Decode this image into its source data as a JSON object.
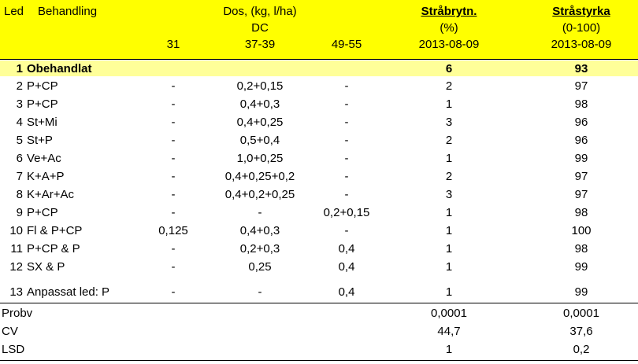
{
  "header": {
    "led": "Led",
    "behandling": "Behandling",
    "dos_title": "Dos, (kg, l/ha)",
    "dc": "DC",
    "dc31": "31",
    "dc3739": "37-39",
    "dc4955": "49-55",
    "strabrytn": "Stråbrytn.",
    "strabrytn_unit": "(%)",
    "strabrytn_date": "2013-08-09",
    "strastyrka": "Stråstyrka",
    "strastyrka_unit": "(0-100)",
    "strastyrka_date": "2013-08-09"
  },
  "rows": [
    {
      "led": "1",
      "beh": "Obehandlat",
      "d31": "",
      "d3739": "",
      "d4955": "",
      "brytn": "6",
      "styrka": "93"
    },
    {
      "led": "2",
      "beh": "P+CP",
      "d31": "-",
      "d3739": "0,2+0,15",
      "d4955": "-",
      "brytn": "2",
      "styrka": "97"
    },
    {
      "led": "3",
      "beh": "P+CP",
      "d31": "-",
      "d3739": "0,4+0,3",
      "d4955": "-",
      "brytn": "1",
      "styrka": "98"
    },
    {
      "led": "4",
      "beh": "St+Mi",
      "d31": "-",
      "d3739": "0,4+0,25",
      "d4955": "-",
      "brytn": "3",
      "styrka": "96"
    },
    {
      "led": "5",
      "beh": "St+P",
      "d31": "-",
      "d3739": "0,5+0,4",
      "d4955": "-",
      "brytn": "2",
      "styrka": "96"
    },
    {
      "led": "6",
      "beh": "Ve+Ac",
      "d31": "-",
      "d3739": "1,0+0,25",
      "d4955": "-",
      "brytn": "1",
      "styrka": "99"
    },
    {
      "led": "7",
      "beh": "K+A+P",
      "d31": "-",
      "d3739": "0,4+0,25+0,2",
      "d4955": "-",
      "brytn": "2",
      "styrka": "97"
    },
    {
      "led": "8",
      "beh": "K+Ar+Ac",
      "d31": "-",
      "d3739": "0,4+0,2+0,25",
      "d4955": "-",
      "brytn": "3",
      "styrka": "97"
    },
    {
      "led": "9",
      "beh": "P+CP",
      "d31": "-",
      "d3739": "-",
      "d4955": "0,2+0,15",
      "brytn": "1",
      "styrka": "98"
    },
    {
      "led": "10",
      "beh": "Fl & P+CP",
      "d31": "0,125",
      "d3739": "0,4+0,3",
      "d4955": "-",
      "brytn": "1",
      "styrka": "100"
    },
    {
      "led": "11",
      "beh": "P+CP & P",
      "d31": "-",
      "d3739": "0,2+0,3",
      "d4955": "0,4",
      "brytn": "1",
      "styrka": "98"
    },
    {
      "led": "12",
      "beh": "SX & P",
      "d31": "-",
      "d3739": "0,25",
      "d4955": "0,4",
      "brytn": "1",
      "styrka": "99"
    },
    {
      "led": "13",
      "beh": "Anpassat led: P",
      "d31": "-",
      "d3739": "-",
      "d4955": "0,4",
      "brytn": "1",
      "styrka": "99"
    }
  ],
  "stats": [
    {
      "label": "Probv",
      "brytn": "0,0001",
      "styrka": "0,0001"
    },
    {
      "label": "CV",
      "brytn": "44,7",
      "styrka": "37,6"
    },
    {
      "label": "LSD",
      "brytn": "1",
      "styrka": "0,2"
    }
  ],
  "colors": {
    "header_bg": "#ffff00",
    "highlight_row_bg": "#ffff99"
  }
}
